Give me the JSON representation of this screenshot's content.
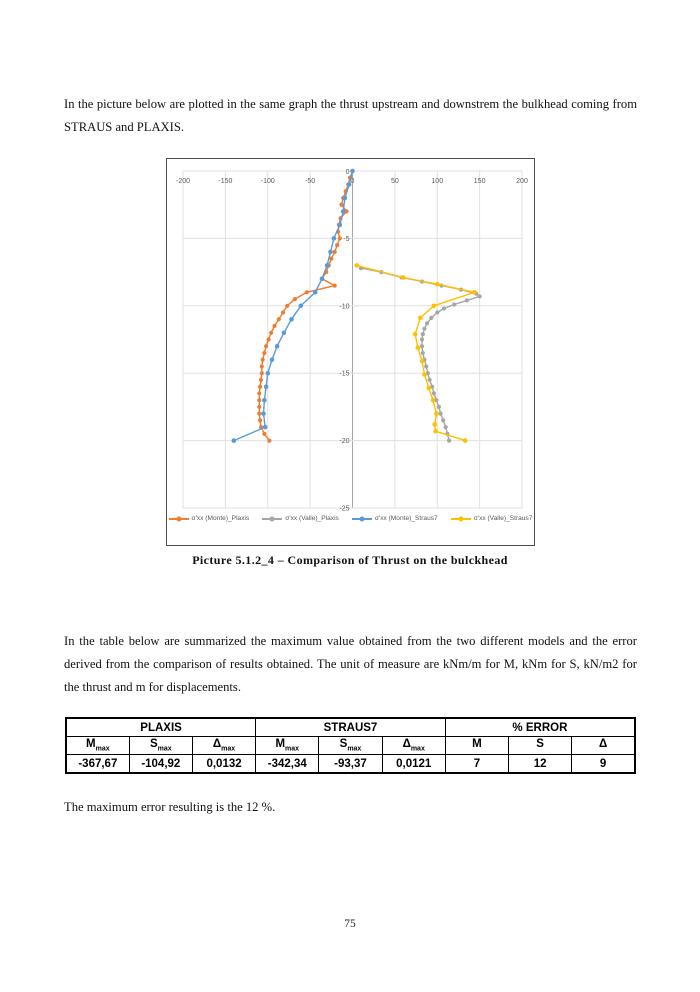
{
  "page": {
    "paragraph_1": "In the picture below are plotted in the same graph the thrust upstream and downstrem the bulkhead coming from STRAUS and PLAXIS.",
    "caption": "Picture 5.1.2_4 – Comparison of Thrust on the bulckhead",
    "paragraph_2": "In the table below are summarized the maximum value obtained from the two different models and the error derived from the comparison of results obtained. The unit of measure are kNm/m for M, kNm for S, kN/m2 for the thrust and m for displacements.",
    "closing_line": "The maximum error resulting is the 12 %.",
    "page_number": "75"
  },
  "chart_data": {
    "type": "scatter",
    "title": "",
    "xlabel": "",
    "ylabel": "",
    "xlim": [
      -200,
      200
    ],
    "xticks": [
      -200,
      -150,
      -100,
      -50,
      0,
      50,
      100,
      150,
      200
    ],
    "ylim": [
      -25,
      0
    ],
    "yticks": [
      0,
      -5,
      -10,
      -15,
      -20,
      -25
    ],
    "grid": true,
    "legend_position": "bottom",
    "axis_color": "#a6a6a6",
    "grid_color": "#e0e0e0",
    "tick_color": "#595959",
    "series": [
      {
        "name": "σ'xx (Monte)_Plaxis",
        "color": "#ED7D31",
        "marker_r": 2.1,
        "points": [
          [
            0,
            0
          ],
          [
            -3,
            -0.5
          ],
          [
            -5,
            -1
          ],
          [
            -8,
            -1.5
          ],
          [
            -11,
            -2
          ],
          [
            -13,
            -2.5
          ],
          [
            -7,
            -3
          ],
          [
            -14,
            -3.5
          ],
          [
            -16,
            -4
          ],
          [
            -17,
            -4.5
          ],
          [
            -15,
            -5
          ],
          [
            -18,
            -5.5
          ],
          [
            -21,
            -6
          ],
          [
            -25,
            -6.5
          ],
          [
            -28,
            -7
          ],
          [
            -31,
            -7.5
          ],
          [
            -36,
            -8
          ],
          [
            -21,
            -8.5
          ],
          [
            -54,
            -9
          ],
          [
            -68,
            -9.5
          ],
          [
            -77,
            -10
          ],
          [
            -82,
            -10.5
          ],
          [
            -87,
            -11
          ],
          [
            -92,
            -11.5
          ],
          [
            -96,
            -12
          ],
          [
            -99,
            -12.5
          ],
          [
            -102,
            -13
          ],
          [
            -104,
            -13.5
          ],
          [
            -106,
            -14
          ],
          [
            -107,
            -14.5
          ],
          [
            -107,
            -15
          ],
          [
            -108,
            -15.5
          ],
          [
            -109,
            -16
          ],
          [
            -110,
            -16.5
          ],
          [
            -110,
            -17
          ],
          [
            -110,
            -17.5
          ],
          [
            -110,
            -18
          ],
          [
            -109,
            -18.5
          ],
          [
            -108,
            -19
          ],
          [
            -104,
            -19.5
          ],
          [
            -98,
            -20
          ]
        ]
      },
      {
        "name": "σ'xx (Valle)_Plaxis",
        "color": "#A6A6A6",
        "marker_r": 2.1,
        "points": [
          [
            10,
            -7.2
          ],
          [
            34,
            -7.5
          ],
          [
            58,
            -7.9
          ],
          [
            82,
            -8.2
          ],
          [
            105,
            -8.5
          ],
          [
            128,
            -8.8
          ],
          [
            146,
            -9.1
          ],
          [
            150,
            -9.3
          ],
          [
            135,
            -9.6
          ],
          [
            120,
            -9.9
          ],
          [
            108,
            -10.2
          ],
          [
            100,
            -10.5
          ],
          [
            93,
            -10.9
          ],
          [
            88,
            -11.3
          ],
          [
            85,
            -11.7
          ],
          [
            83,
            -12.1
          ],
          [
            82,
            -12.5
          ],
          [
            82,
            -13
          ],
          [
            83,
            -13.5
          ],
          [
            85,
            -14
          ],
          [
            87,
            -14.5
          ],
          [
            89,
            -15
          ],
          [
            91,
            -15.5
          ],
          [
            94,
            -16
          ],
          [
            96,
            -16.5
          ],
          [
            99,
            -17
          ],
          [
            102,
            -17.5
          ],
          [
            104,
            -18
          ],
          [
            107,
            -18.5
          ],
          [
            110,
            -19
          ],
          [
            112,
            -19.5
          ],
          [
            114,
            -20
          ]
        ]
      },
      {
        "name": "σ'xx (Monte)_Straus7",
        "color": "#5B9BD5",
        "marker_r": 2.3,
        "points": [
          [
            0,
            0
          ],
          [
            -4,
            -1
          ],
          [
            -9,
            -2
          ],
          [
            -11,
            -3
          ],
          [
            -15,
            -4
          ],
          [
            -22,
            -5
          ],
          [
            -26,
            -6
          ],
          [
            -30,
            -7
          ],
          [
            -36,
            -8
          ],
          [
            -44,
            -9
          ],
          [
            -61,
            -10
          ],
          [
            -72,
            -11
          ],
          [
            -81,
            -12
          ],
          [
            -89,
            -13
          ],
          [
            -95,
            -14
          ],
          [
            -100,
            -15
          ],
          [
            -102,
            -16
          ],
          [
            -104,
            -17
          ],
          [
            -105,
            -18
          ],
          [
            -103,
            -19
          ],
          [
            -140,
            -20
          ]
        ]
      },
      {
        "name": "σ'xx (Valle)_Straus7",
        "color": "#FFC000",
        "marker_r": 2.3,
        "points": [
          [
            5,
            -7
          ],
          [
            60,
            -7.9
          ],
          [
            100,
            -8.4
          ],
          [
            144,
            -9
          ],
          [
            96,
            -10
          ],
          [
            80,
            -10.9
          ],
          [
            74,
            -12.1
          ],
          [
            77,
            -13.1
          ],
          [
            82,
            -14.1
          ],
          [
            85,
            -15.1
          ],
          [
            90,
            -16.1
          ],
          [
            95,
            -17
          ],
          [
            99,
            -18
          ],
          [
            97,
            -18.8
          ],
          [
            98,
            -19.3
          ],
          [
            133,
            -20
          ]
        ]
      }
    ]
  },
  "table": {
    "sections": [
      {
        "label": "PLAXIS"
      },
      {
        "label": "STRAUS7"
      },
      {
        "label": "% ERROR"
      }
    ],
    "subheaders": [
      {
        "base": "M",
        "sub": "max"
      },
      {
        "base": "S",
        "sub": "max"
      },
      {
        "base": "Δ",
        "sub": "max"
      },
      {
        "base": "M",
        "sub": "max"
      },
      {
        "base": "S",
        "sub": "max"
      },
      {
        "base": "Δ",
        "sub": "max"
      },
      {
        "base": "M",
        "sub": ""
      },
      {
        "base": "S",
        "sub": ""
      },
      {
        "base": "Δ",
        "sub": ""
      }
    ],
    "values": [
      "-367,67",
      "-104,92",
      "0,0132",
      "-342,34",
      "-93,37",
      "0,0121",
      "7",
      "12",
      "9"
    ]
  }
}
